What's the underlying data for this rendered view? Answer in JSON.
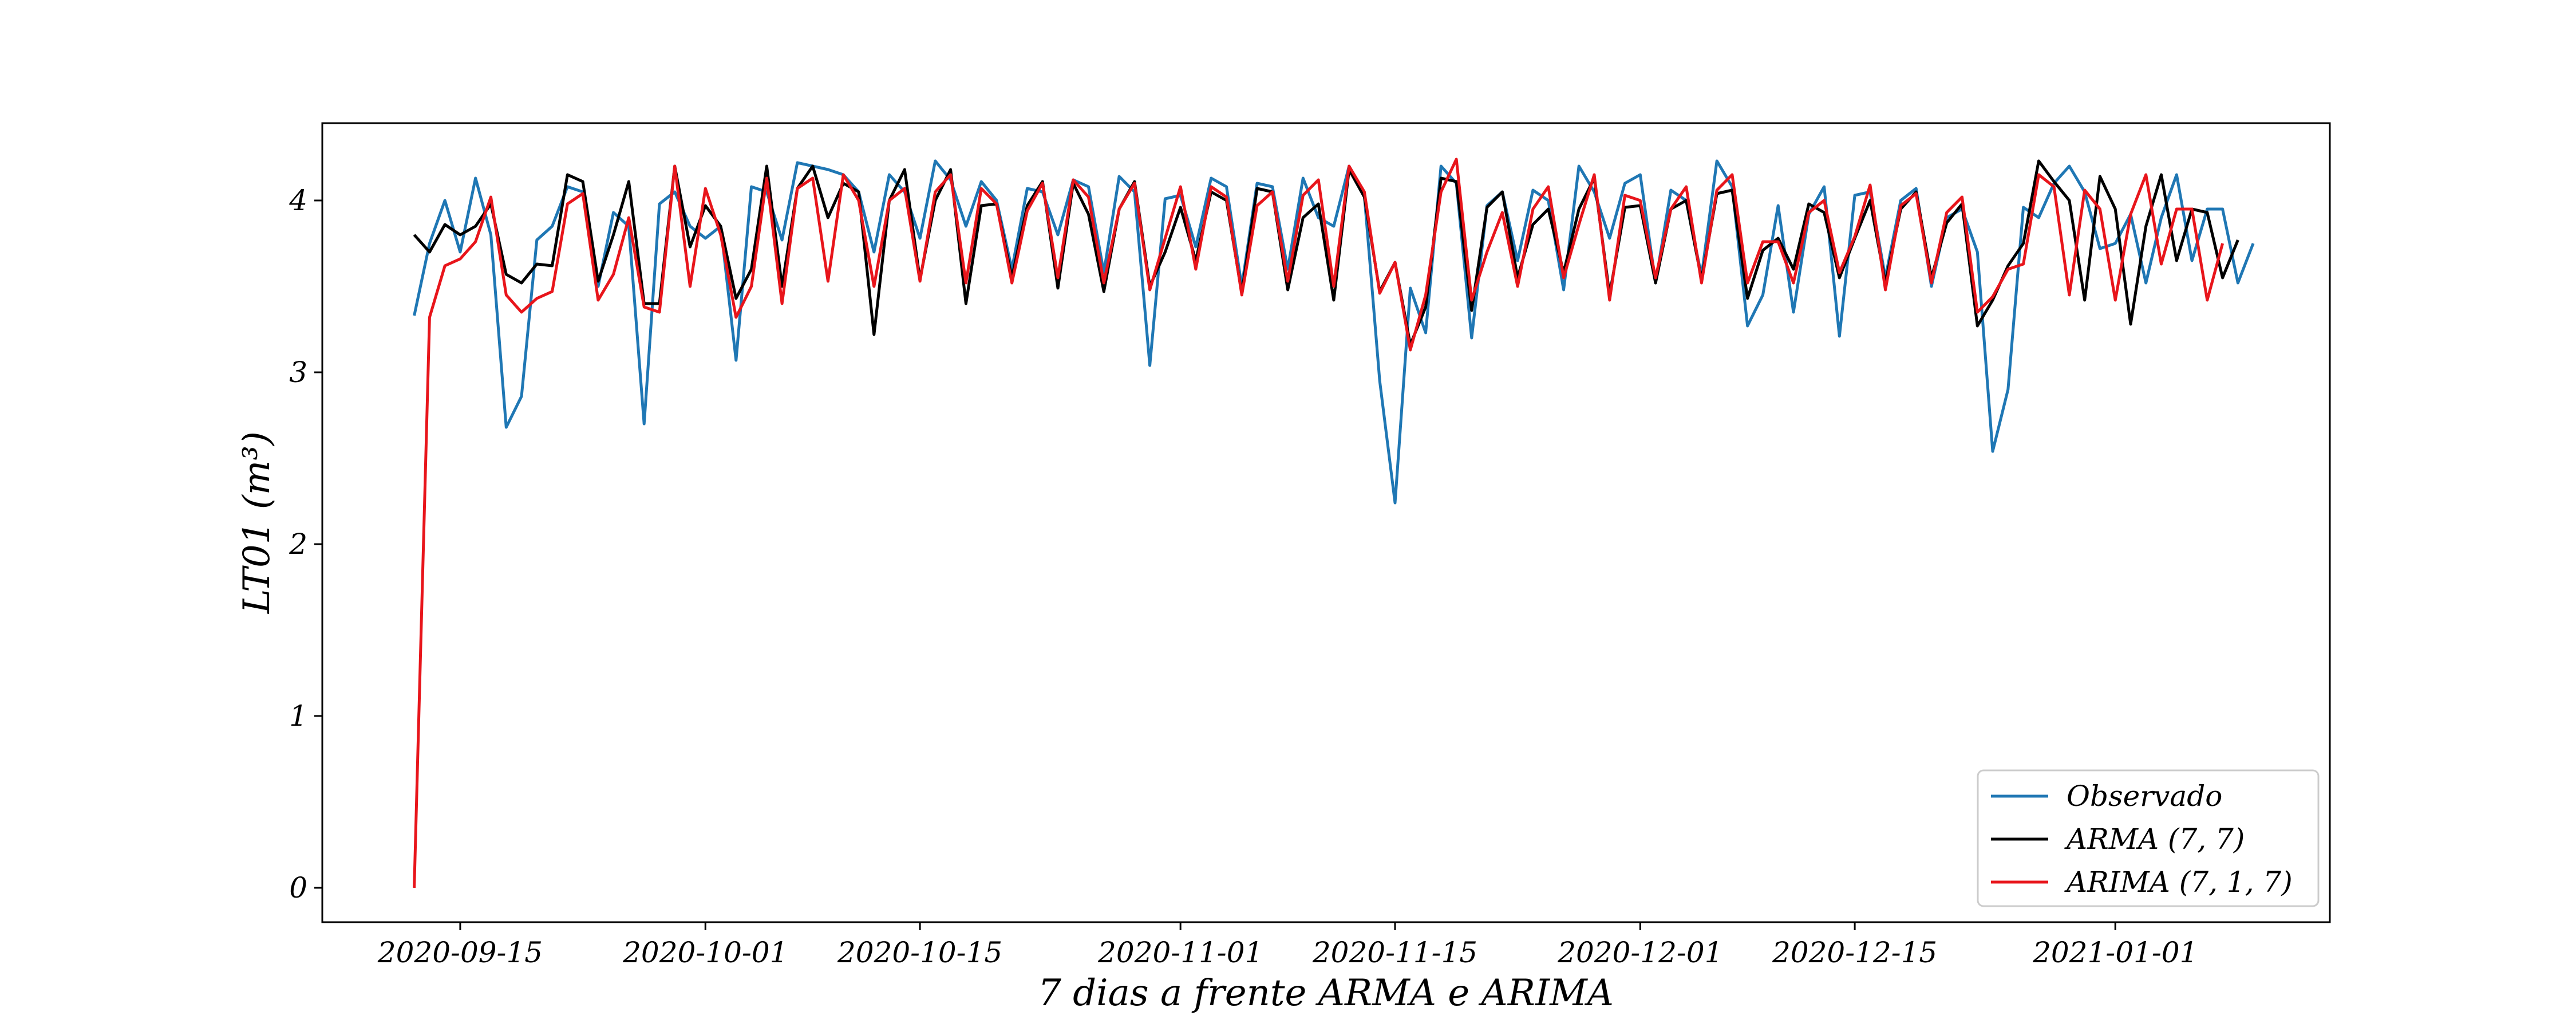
{
  "chart_data": {
    "type": "line",
    "xlabel": "7 dias a frente ARMA e ARIMA",
    "ylabel": "LT01 (m³)",
    "xlim": [
      "2020-09-06",
      "2021-01-15"
    ],
    "ylim": [
      -0.2,
      4.45
    ],
    "x_ticks": [
      "2020-09-15",
      "2020-10-01",
      "2020-10-15",
      "2020-11-01",
      "2020-11-15",
      "2020-12-01",
      "2020-12-15",
      "2021-01-01"
    ],
    "y_ticks": [
      0,
      1,
      2,
      3,
      4
    ],
    "grid": false,
    "legend_position": "lower-right",
    "start_date": "2020-09-12",
    "series": [
      {
        "name": "Observado",
        "color": "#1f77b4",
        "values": [
          3.33,
          3.75,
          4.0,
          3.7,
          4.13,
          3.8,
          2.68,
          2.86,
          3.77,
          3.85,
          4.08,
          4.05,
          3.5,
          3.93,
          3.85,
          2.7,
          3.98,
          4.05,
          3.85,
          3.78,
          3.85,
          3.07,
          4.08,
          4.05,
          3.77,
          4.22,
          4.2,
          4.18,
          4.15,
          4.05,
          3.7,
          4.15,
          4.05,
          3.78,
          4.23,
          4.12,
          3.85,
          4.11,
          4.0,
          3.6,
          4.07,
          4.05,
          3.8,
          4.12,
          4.08,
          3.58,
          4.14,
          4.05,
          3.04,
          4.01,
          4.03,
          3.73,
          4.13,
          4.08,
          3.5,
          4.1,
          4.08,
          3.6,
          4.13,
          3.9,
          3.85,
          4.2,
          4.03,
          2.95,
          2.24,
          3.49,
          3.23,
          4.2,
          4.1,
          3.2,
          3.97,
          4.05,
          3.65,
          4.06,
          4.0,
          3.48,
          4.2,
          4.05,
          3.78,
          4.1,
          4.15,
          3.52,
          4.06,
          4.0,
          3.56,
          4.23,
          4.08,
          3.27,
          3.45,
          3.97,
          3.35,
          3.92,
          4.08,
          3.21,
          4.03,
          4.05,
          3.55,
          4.0,
          4.07,
          3.5,
          3.9,
          3.95,
          3.7,
          2.54,
          2.9,
          3.96,
          3.9,
          4.1,
          4.2,
          4.05,
          3.72,
          3.75,
          3.92,
          3.52,
          3.9,
          4.15,
          3.65,
          3.95,
          3.95,
          3.52,
          3.75
        ]
      },
      {
        "name": "ARMA (7, 7)",
        "color": "#000000",
        "values": [
          3.8,
          3.7,
          3.86,
          3.8,
          3.85,
          3.98,
          3.57,
          3.52,
          3.63,
          3.62,
          4.15,
          4.11,
          3.53,
          3.8,
          4.11,
          3.4,
          3.4,
          4.2,
          3.73,
          3.97,
          3.85,
          3.43,
          3.6,
          4.2,
          3.5,
          4.07,
          4.2,
          3.9,
          4.1,
          4.05,
          3.22,
          4.0,
          4.18,
          3.54,
          4.0,
          4.18,
          3.4,
          3.97,
          3.98,
          3.55,
          3.97,
          4.11,
          3.49,
          4.1,
          3.92,
          3.47,
          3.95,
          4.11,
          3.5,
          3.7,
          3.96,
          3.65,
          4.05,
          4.0,
          3.46,
          4.07,
          4.05,
          3.48,
          3.9,
          3.98,
          3.42,
          4.18,
          4.02,
          3.47,
          3.64,
          3.16,
          3.38,
          4.13,
          4.11,
          3.36,
          3.96,
          4.05,
          3.55,
          3.86,
          3.95,
          3.58,
          3.95,
          4.13,
          3.45,
          3.96,
          3.97,
          3.52,
          3.95,
          4.0,
          3.54,
          4.04,
          4.06,
          3.43,
          3.71,
          3.78,
          3.6,
          3.98,
          3.93,
          3.55,
          3.78,
          4.0,
          3.52,
          3.95,
          4.05,
          3.55,
          3.87,
          3.98,
          3.27,
          3.42,
          3.62,
          3.75,
          4.23,
          4.11,
          4.0,
          3.42,
          4.14,
          3.95,
          3.28,
          3.85,
          4.15,
          3.65,
          3.95,
          3.93,
          3.55,
          3.77
        ]
      },
      {
        "name": "ARIMA (7, 1, 7)",
        "color": "#e8151b",
        "values": [
          0.0,
          3.32,
          3.62,
          3.66,
          3.76,
          4.02,
          3.45,
          3.35,
          3.43,
          3.47,
          3.98,
          4.04,
          3.42,
          3.57,
          3.9,
          3.38,
          3.35,
          4.2,
          3.5,
          4.07,
          3.8,
          3.32,
          3.5,
          4.13,
          3.4,
          4.07,
          4.13,
          3.53,
          4.15,
          4.0,
          3.5,
          4.0,
          4.07,
          3.53,
          4.05,
          4.15,
          3.52,
          4.07,
          3.98,
          3.52,
          3.94,
          4.1,
          3.55,
          4.12,
          4.02,
          3.52,
          3.95,
          4.1,
          3.48,
          3.78,
          4.08,
          3.6,
          4.08,
          4.02,
          3.45,
          3.97,
          4.05,
          3.53,
          4.03,
          4.12,
          3.5,
          4.2,
          4.05,
          3.46,
          3.64,
          3.13,
          3.45,
          4.05,
          4.24,
          3.42,
          3.7,
          3.93,
          3.5,
          3.95,
          4.08,
          3.55,
          3.86,
          4.15,
          3.42,
          4.03,
          4.0,
          3.55,
          3.95,
          4.08,
          3.52,
          4.06,
          4.15,
          3.52,
          3.76,
          3.76,
          3.52,
          3.93,
          4.0,
          3.58,
          3.79,
          4.09,
          3.48,
          3.97,
          4.04,
          3.52,
          3.93,
          4.02,
          3.35,
          3.44,
          3.6,
          3.63,
          4.15,
          4.08,
          3.45,
          4.06,
          3.95,
          3.42,
          3.92,
          4.15,
          3.63,
          3.95,
          3.95,
          3.42,
          3.75
        ]
      }
    ]
  }
}
